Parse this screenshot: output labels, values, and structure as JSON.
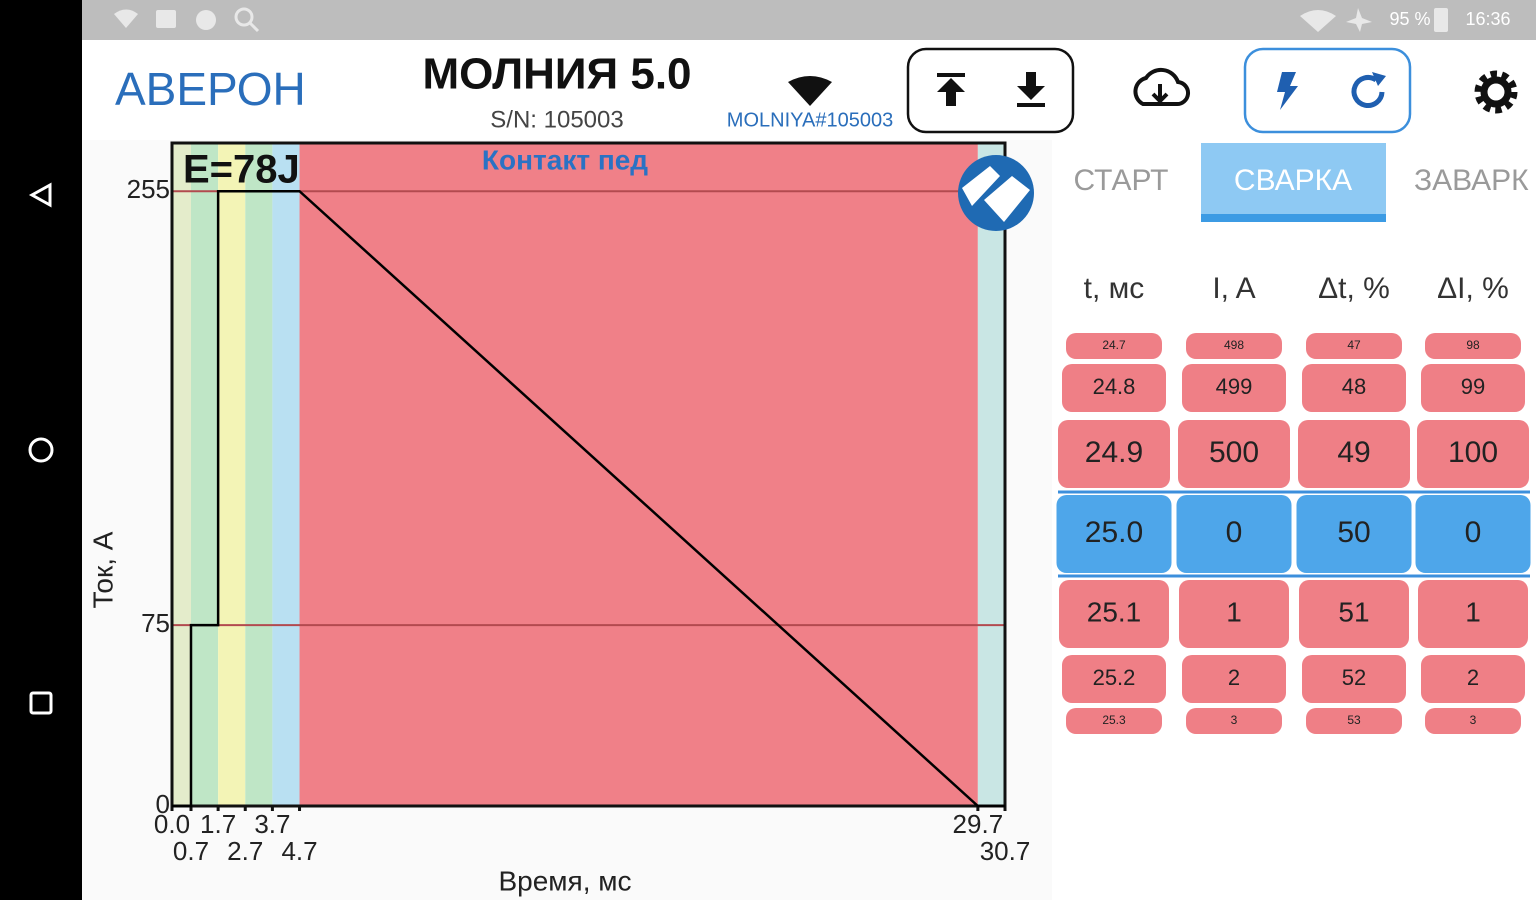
{
  "status_bar": {
    "battery": "95 %",
    "time": "16:36"
  },
  "header": {
    "brand": "АВЕРОН",
    "device": "МОЛНИЯ 5.0",
    "serial": "S/N: 105003",
    "network": "MOLNIYA#105003"
  },
  "chart_data": {
    "type": "line",
    "annotation": "E=78J",
    "subtitle": "Контакт пед",
    "x_label": "Время, мс",
    "y_label": "Ток, А",
    "x": [
      {
        "value": 0,
        "label": "0.0"
      },
      0.7,
      0.7,
      1.7,
      1.7,
      2.7,
      3.7,
      4.7,
      29.7,
      30.7
    ],
    "values": [
      0,
      0,
      75,
      75,
      255,
      255,
      255,
      255,
      0,
      0
    ],
    "color": "#000000",
    "xlim": [
      0,
      30.7
    ],
    "ylim": [
      0,
      275
    ],
    "xticks": [
      {
        "value": 0,
        "label": "0.0"
      },
      0.7,
      1.7,
      2.7,
      3.7,
      4.7,
      29.7,
      30.7
    ],
    "yticks": [
      0,
      75,
      255
    ],
    "band_colors": [
      "#e4eccb",
      "#bfe6c6",
      "#f3f4b6",
      "#bfe6c6",
      "#b9e0f2",
      "#f08088",
      "#c9e6e4"
    ],
    "grid": true
  },
  "tabs": [
    "СТАРТ",
    "СВАРКА",
    "ЗАВАРК"
  ],
  "active_tab": 1,
  "table": {
    "header": [
      "t, мс",
      "I, A",
      "Δt, %",
      "ΔI, %"
    ],
    "rows": [
      [
        "24.7",
        "498",
        "47",
        "98"
      ],
      [
        "24.8",
        "499",
        "48",
        "99"
      ],
      [
        "24.9",
        "500",
        "49",
        "100"
      ],
      [
        "25.0",
        "0",
        "50",
        "0"
      ],
      [
        "25.1",
        "1",
        "51",
        "1"
      ],
      [
        "25.2",
        "2",
        "52",
        "2"
      ],
      [
        "25.3",
        "3",
        "53",
        "3"
      ]
    ],
    "selected_row": 3
  }
}
